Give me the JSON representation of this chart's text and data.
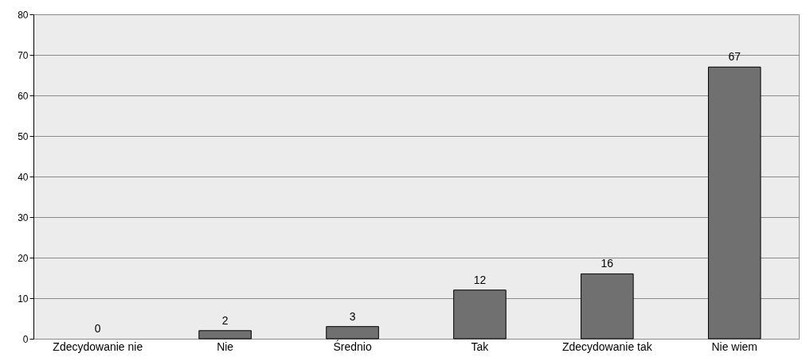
{
  "chart_data": {
    "type": "bar",
    "categories": [
      "Zdecydowanie nie",
      "Nie",
      "Średnio",
      "Tak",
      "Zdecydowanie tak",
      "Nie wiem"
    ],
    "values": [
      0,
      2,
      3,
      12,
      16,
      67
    ],
    "color": "#707070",
    "ylim": [
      0,
      80
    ],
    "yticks": [
      0,
      10,
      20,
      30,
      40,
      50,
      60,
      70,
      80
    ],
    "grid": "y",
    "data_labels": true
  }
}
